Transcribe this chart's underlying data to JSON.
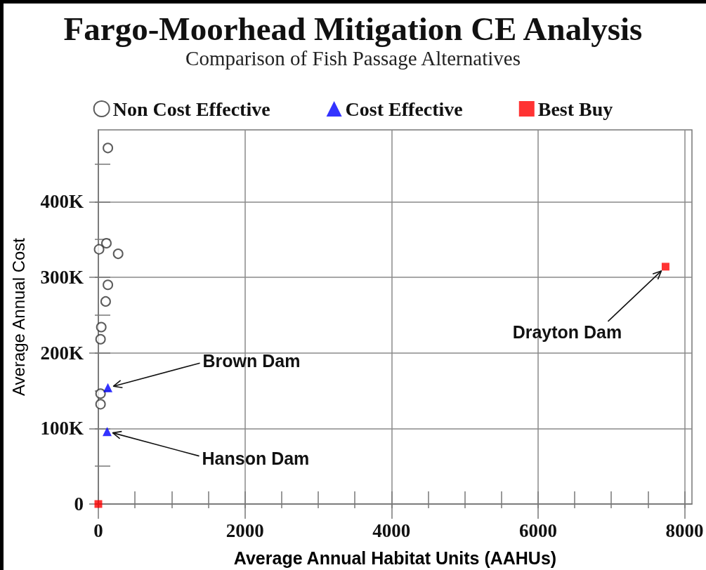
{
  "chart_data": {
    "type": "scatter",
    "title": "Fargo-Moorhead Mitigation CE Analysis",
    "subtitle": "Comparison of Fish Passage Alternatives",
    "xlabel": "Average Annual Habitat Units (AAHUs)",
    "ylabel": "Average Annual Cost",
    "series": [
      {
        "name": "Non Cost Effective",
        "color": "#333333",
        "marker": "circle",
        "x": [
          130,
          110,
          10,
          270,
          130,
          100,
          40,
          30,
          30,
          30
        ],
        "values": [
          471000,
          345000,
          337000,
          331000,
          290000,
          268000,
          234000,
          218000,
          146000,
          132000
        ]
      },
      {
        "name": "Cost Effective",
        "color": "#0000ff",
        "marker": "triangle",
        "x": [
          130,
          120
        ],
        "values": [
          154000,
          96000
        ]
      },
      {
        "name": "Best Buy",
        "color": "#ff0000",
        "marker": "square",
        "x": [
          0,
          7740
        ],
        "values": [
          0,
          314000
        ]
      }
    ],
    "xlim": [
      0,
      8100
    ],
    "ylim": [
      0,
      495000
    ],
    "xticks": [
      0,
      {
        "value": 500,
        "label": null
      },
      {
        "value": 1000,
        "label": null
      },
      {
        "value": 1500,
        "label": null
      },
      2000,
      {
        "value": 2500,
        "label": null
      },
      {
        "value": 3000,
        "label": null
      },
      {
        "value": 3500,
        "label": null
      },
      4000,
      {
        "value": 4500,
        "label": null
      },
      {
        "value": 5000,
        "label": null
      },
      {
        "value": 5500,
        "label": null
      },
      6000,
      {
        "value": 6500,
        "label": null
      },
      {
        "value": 7000,
        "label": null
      },
      {
        "value": 7500,
        "label": null
      },
      8000
    ],
    "yticks": [
      0,
      {
        "value": 50000,
        "label": null
      },
      {
        "value": 100000,
        "label": "100K"
      },
      {
        "value": 150000,
        "label": null
      },
      {
        "value": 200000,
        "label": "200K"
      },
      {
        "value": 250000,
        "label": null
      },
      {
        "value": 300000,
        "label": "300K"
      },
      {
        "value": 350000,
        "label": null
      },
      {
        "value": 400000,
        "label": "400K"
      },
      {
        "value": 450000,
        "label": null
      }
    ],
    "grid": true,
    "legend": "top",
    "annotations": [
      {
        "text": "Brown Dam",
        "x": 130,
        "y": 154000
      },
      {
        "text": "Hanson Dam",
        "x": 120,
        "y": 96000
      },
      {
        "text": "Drayton Dam",
        "x": 7740,
        "y": 314000
      }
    ]
  }
}
